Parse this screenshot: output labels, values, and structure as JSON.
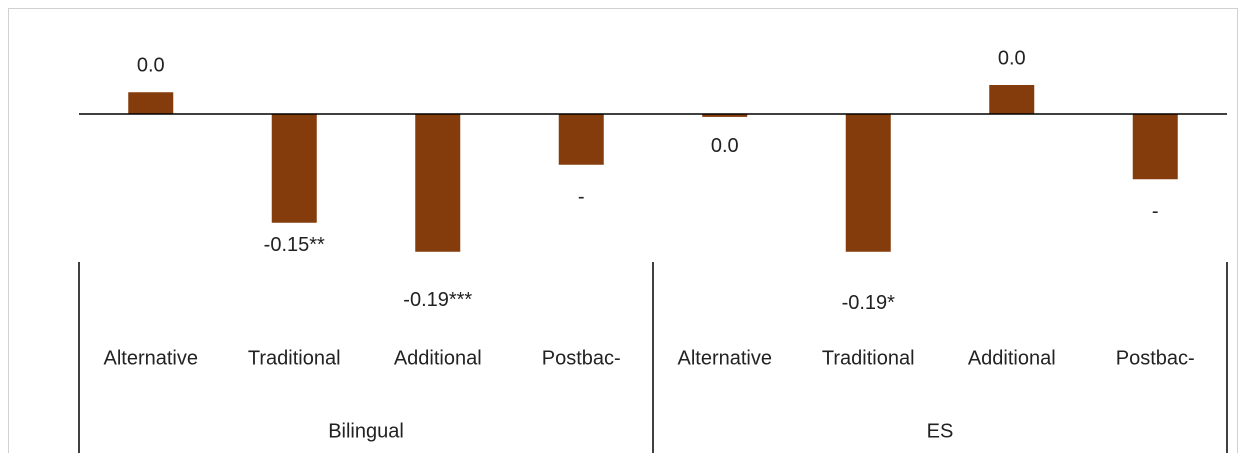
{
  "chart_data": {
    "type": "bar",
    "categories": [
      "Alternative",
      "Traditional",
      "Additional",
      "Postbac-",
      "Alternative",
      "Traditional",
      "Additional",
      "Postbac-"
    ],
    "groups": [
      {
        "name": "Bilingual",
        "size": 4
      },
      {
        "name": "ES",
        "size": 4
      }
    ],
    "values": [
      0.03,
      -0.15,
      -0.19,
      -0.07,
      -0.004,
      -0.19,
      0.04,
      -0.09
    ],
    "value_labels": [
      "0.0",
      "-0.15**",
      "-0.19***",
      "-",
      "0.0",
      "-0.19*",
      "0.0",
      "-"
    ],
    "color": "#843c0c",
    "ylim": [
      -0.2,
      0.1
    ]
  }
}
